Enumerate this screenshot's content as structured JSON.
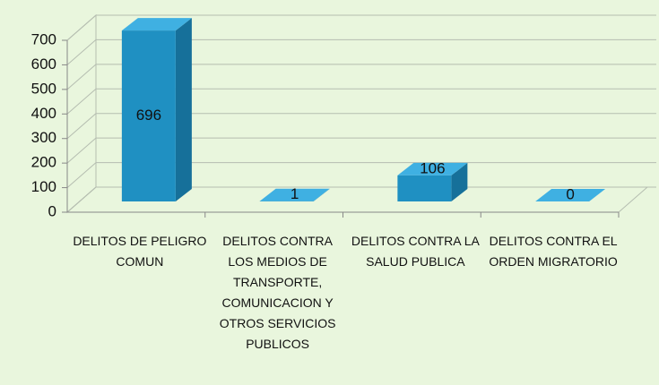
{
  "chart_data": {
    "type": "bar3d",
    "categories": [
      "DELITOS DE PELIGRO COMUN",
      "DELITOS CONTRA LOS MEDIOS DE TRANSPORTE, COMUNICACION Y OTROS SERVICIOS PUBLICOS",
      "DELITOS CONTRA LA SALUD PUBLICA",
      "DELITOS CONTRA EL ORDEN MIGRATORIO"
    ],
    "values": [
      696,
      1,
      106,
      0
    ],
    "color": "#1f90c2",
    "ylim": [
      0,
      700
    ],
    "yticks": [
      0,
      100,
      200,
      300,
      400,
      500,
      600,
      700
    ],
    "grid": true
  }
}
